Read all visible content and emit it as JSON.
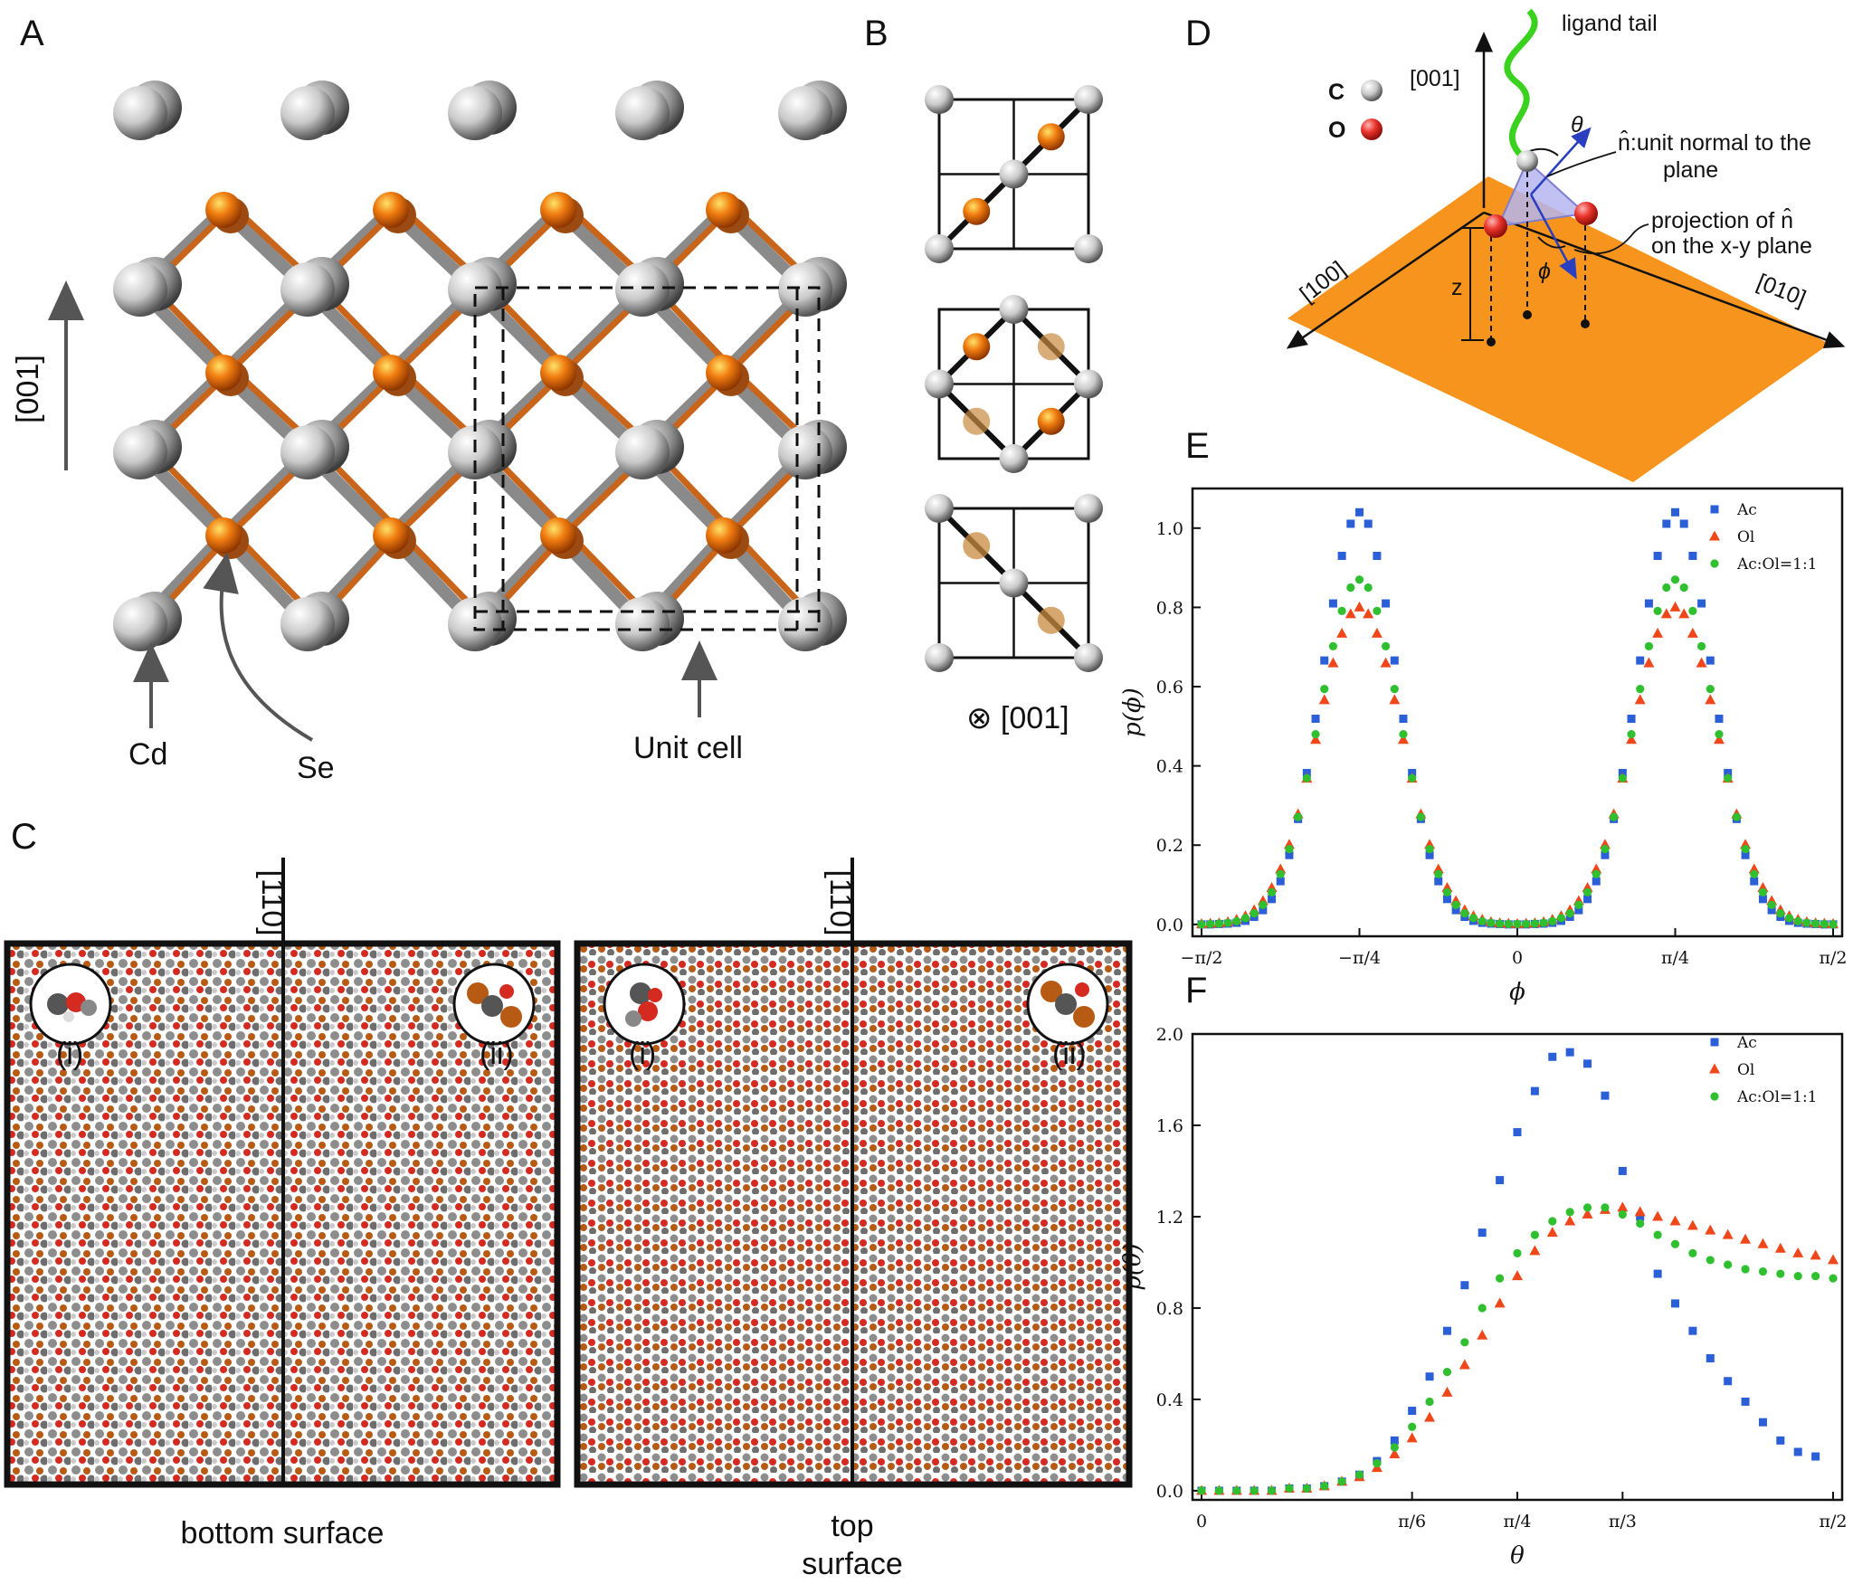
{
  "panels": {
    "a": "A",
    "b": "B",
    "c": "C",
    "d": "D",
    "e": "E",
    "f": "F"
  },
  "panel_a": {
    "axis": "[001]",
    "cd": "Cd",
    "se": "Se",
    "unit_cell": "Unit cell"
  },
  "panel_b": {
    "view_axis": "⊗ [001]"
  },
  "panel_c": {
    "axis_left": "[110]",
    "axis_right": "[110]",
    "inset_i": "(i)",
    "inset_ii": "(ii)",
    "caption_left": "bottom surface",
    "caption_right_1": "top",
    "caption_right_2": "surface"
  },
  "panel_d": {
    "ligand_tail": "ligand tail",
    "c_label": "C",
    "o_label": "O",
    "axis_001": "[001]",
    "theta": "θ",
    "phi": "ϕ",
    "n_label_1": "n̂:unit normal to the",
    "n_label_2": "plane",
    "proj_1": "projection of n̂",
    "proj_2": "on the x-y plane",
    "z": "z",
    "axis_100": "[100]",
    "axis_010": "[010]",
    "colors": {
      "surface": "#f7941d",
      "c_atom": "#bdbdbd",
      "o_atom": "#e8322a",
      "tail": "#3bd21f",
      "vector": "#2a3fbf"
    }
  },
  "chart_data": [
    {
      "type": "scatter",
      "panel": "E",
      "xlabel": "ϕ",
      "ylabel": "p(ϕ)",
      "xlim": [
        -1.5708,
        1.5708
      ],
      "ylim": [
        -0.03,
        1.1
      ],
      "xticks": [
        {
          "v": -1.5708,
          "l": "−π/2"
        },
        {
          "v": -0.7854,
          "l": "−π/4"
        },
        {
          "v": 0,
          "l": "0"
        },
        {
          "v": 0.7854,
          "l": "π/4"
        },
        {
          "v": 1.5708,
          "l": "π/2"
        }
      ],
      "yticks": [
        {
          "v": 0,
          "l": "0.0"
        },
        {
          "v": 0.2,
          "l": "0.2"
        },
        {
          "v": 0.4,
          "l": "0.4"
        },
        {
          "v": 0.6,
          "l": "0.6"
        },
        {
          "v": 0.8,
          "l": "0.8"
        },
        {
          "v": 1.0,
          "l": "1.0"
        }
      ],
      "legend_position": "top-right",
      "series": [
        {
          "name": "Ac",
          "color": "#2b5fd8",
          "marker": "square",
          "shape": "gauss",
          "peak": 1.04,
          "centers": [
            -0.7854,
            0.7854
          ],
          "sigma": 0.185,
          "n": 73
        },
        {
          "name": "Ol",
          "color": "#f0471a",
          "marker": "triangle",
          "shape": "gauss",
          "peak": 0.8,
          "centers": [
            -0.7854,
            0.7854
          ],
          "sigma": 0.21,
          "n": 73
        },
        {
          "name": "Ac:Ol=1:1",
          "color": "#2fbf2f",
          "marker": "circle",
          "shape": "gauss",
          "peak": 0.87,
          "centers": [
            -0.7854,
            0.7854
          ],
          "sigma": 0.2,
          "n": 73
        }
      ]
    },
    {
      "type": "scatter",
      "panel": "F",
      "xlabel": "θ",
      "ylabel": "p(θ)",
      "xlim": [
        0,
        1.5708
      ],
      "ylim": [
        -0.04,
        2.0
      ],
      "xticks": [
        {
          "v": 0,
          "l": "0"
        },
        {
          "v": 0.5236,
          "l": "π/6"
        },
        {
          "v": 0.7854,
          "l": "π/4"
        },
        {
          "v": 1.0472,
          "l": "π/3"
        },
        {
          "v": 1.5708,
          "l": "π/2"
        }
      ],
      "yticks": [
        {
          "v": 0,
          "l": "0.0"
        },
        {
          "v": 0.4,
          "l": "0.4"
        },
        {
          "v": 0.8,
          "l": "0.8"
        },
        {
          "v": 1.2,
          "l": "1.2"
        },
        {
          "v": 1.6,
          "l": "1.6"
        },
        {
          "v": 2.0,
          "l": "2.0"
        }
      ],
      "legend_position": "top-right",
      "series": [
        {
          "name": "Ac",
          "color": "#2b5fd8",
          "marker": "square",
          "points": [
            [
              0,
              0
            ],
            [
              0.0436,
              0
            ],
            [
              0.0873,
              0
            ],
            [
              0.1309,
              0
            ],
            [
              0.1745,
              0
            ],
            [
              0.2182,
              0.01
            ],
            [
              0.2618,
              0.01
            ],
            [
              0.3054,
              0.02
            ],
            [
              0.3491,
              0.04
            ],
            [
              0.3927,
              0.07
            ],
            [
              0.4363,
              0.13
            ],
            [
              0.48,
              0.22
            ],
            [
              0.5236,
              0.35
            ],
            [
              0.5672,
              0.5
            ],
            [
              0.6109,
              0.7
            ],
            [
              0.6545,
              0.9
            ],
            [
              0.6981,
              1.13
            ],
            [
              0.7418,
              1.36
            ],
            [
              0.7854,
              1.57
            ],
            [
              0.829,
              1.75
            ],
            [
              0.8727,
              1.9
            ],
            [
              0.9163,
              1.92
            ],
            [
              0.9599,
              1.87
            ],
            [
              1.0036,
              1.73
            ],
            [
              1.0472,
              1.4
            ],
            [
              1.0908,
              1.2
            ],
            [
              1.1345,
              0.95
            ],
            [
              1.1781,
              0.82
            ],
            [
              1.2217,
              0.7
            ],
            [
              1.2654,
              0.58
            ],
            [
              1.309,
              0.48
            ],
            [
              1.3526,
              0.39
            ],
            [
              1.3963,
              0.3
            ],
            [
              1.4399,
              0.22
            ],
            [
              1.4835,
              0.17
            ],
            [
              1.5272,
              0.15
            ]
          ]
        },
        {
          "name": "Ol",
          "color": "#f0471a",
          "marker": "triangle",
          "points": [
            [
              0,
              0
            ],
            [
              0.0436,
              0
            ],
            [
              0.0873,
              0
            ],
            [
              0.1309,
              0
            ],
            [
              0.1745,
              0
            ],
            [
              0.2182,
              0.01
            ],
            [
              0.2618,
              0.01
            ],
            [
              0.3054,
              0.02
            ],
            [
              0.3491,
              0.04
            ],
            [
              0.3927,
              0.06
            ],
            [
              0.4363,
              0.1
            ],
            [
              0.48,
              0.16
            ],
            [
              0.5236,
              0.23
            ],
            [
              0.5672,
              0.32
            ],
            [
              0.6109,
              0.43
            ],
            [
              0.6545,
              0.55
            ],
            [
              0.6981,
              0.68
            ],
            [
              0.7418,
              0.82
            ],
            [
              0.7854,
              0.94
            ],
            [
              0.829,
              1.05
            ],
            [
              0.8727,
              1.13
            ],
            [
              0.9163,
              1.18
            ],
            [
              0.9599,
              1.21
            ],
            [
              1.0036,
              1.23
            ],
            [
              1.0472,
              1.24
            ],
            [
              1.0908,
              1.22
            ],
            [
              1.1345,
              1.2
            ],
            [
              1.1781,
              1.18
            ],
            [
              1.2217,
              1.16
            ],
            [
              1.2654,
              1.14
            ],
            [
              1.309,
              1.12
            ],
            [
              1.3526,
              1.1
            ],
            [
              1.3963,
              1.08
            ],
            [
              1.4399,
              1.06
            ],
            [
              1.4835,
              1.04
            ],
            [
              1.5272,
              1.03
            ],
            [
              1.5708,
              1.01
            ]
          ]
        },
        {
          "name": "Ac:Ol=1:1",
          "color": "#2fbf2f",
          "marker": "circle",
          "points": [
            [
              0,
              0
            ],
            [
              0.0436,
              0
            ],
            [
              0.0873,
              0
            ],
            [
              0.1309,
              0
            ],
            [
              0.1745,
              0
            ],
            [
              0.2182,
              0.01
            ],
            [
              0.2618,
              0.01
            ],
            [
              0.3054,
              0.02
            ],
            [
              0.3491,
              0.04
            ],
            [
              0.3927,
              0.07
            ],
            [
              0.4363,
              0.12
            ],
            [
              0.48,
              0.19
            ],
            [
              0.5236,
              0.28
            ],
            [
              0.5672,
              0.39
            ],
            [
              0.6109,
              0.52
            ],
            [
              0.6545,
              0.65
            ],
            [
              0.6981,
              0.8
            ],
            [
              0.7418,
              0.93
            ],
            [
              0.7854,
              1.04
            ],
            [
              0.829,
              1.12
            ],
            [
              0.8727,
              1.18
            ],
            [
              0.9163,
              1.22
            ],
            [
              0.9599,
              1.24
            ],
            [
              1.0036,
              1.24
            ],
            [
              1.0472,
              1.21
            ],
            [
              1.0908,
              1.17
            ],
            [
              1.1345,
              1.12
            ],
            [
              1.1781,
              1.08
            ],
            [
              1.2217,
              1.04
            ],
            [
              1.2654,
              1.01
            ],
            [
              1.309,
              0.99
            ],
            [
              1.3526,
              0.97
            ],
            [
              1.3963,
              0.96
            ],
            [
              1.4399,
              0.95
            ],
            [
              1.4835,
              0.94
            ],
            [
              1.5272,
              0.94
            ],
            [
              1.5708,
              0.93
            ]
          ]
        }
      ]
    }
  ]
}
